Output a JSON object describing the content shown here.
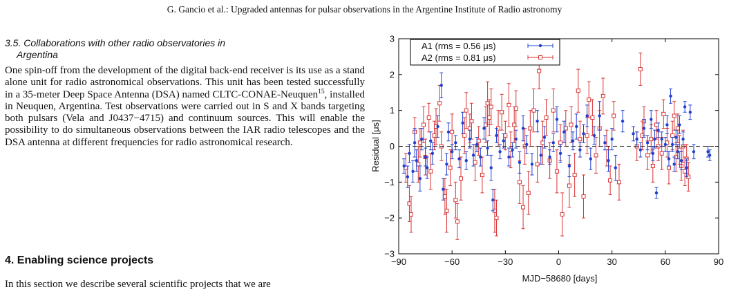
{
  "header": {
    "running_title": "G. Gancio et al.: Upgraded antennas for pulsar observations in the Argentine Institute of Radio astronomy"
  },
  "subsection": {
    "number": "3.5.",
    "title_line1": "Collaborations with other radio observatories in",
    "title_line2": "Argentina"
  },
  "paragraph1": {
    "text_before_sup": "One spin-off from the development of the digital back-end receiver is its use as a stand alone unit for radio astronomical observations. This unit has been tested successfully in a 35-meter Deep Space Antenna (DSA) named CLTC-CONAE-Neuquen",
    "footnote": "15",
    "text_after_sup": ", installed in Neuquen, Argentina. Test observations were carried out in S and X bands targeting both pulsars (Vela and J0437−4715) and continuum sources. This will enable the possibility to do simultaneous observations between the IAR radio telescopes and the DSA antenna at different frequencies for radio astronomical research."
  },
  "section4": {
    "title": "4. Enabling science projects",
    "text": "In this section we describe several scientific projects that we are"
  },
  "colors": {
    "a1": "#1f3fd0",
    "a2": "#d93030"
  },
  "chart_data": {
    "type": "scatter",
    "xlabel": "MJD−58680 [days]",
    "ylabel": "Residual [μs]",
    "xlim": [
      -90,
      90
    ],
    "ylim": [
      -3,
      3
    ],
    "xticks": [
      "−90",
      "−60",
      "−30",
      "0",
      "30",
      "60",
      "90"
    ],
    "yticks": [
      "−3",
      "−2",
      "−1",
      "0",
      "1",
      "2",
      "3"
    ],
    "legend_position": "top-left",
    "zero_line": "dashed",
    "series": [
      {
        "name": "A1 (rms = 0.56 μs)",
        "marker": "dot",
        "points": [
          [
            -87,
            -0.55,
            0.2
          ],
          [
            -85,
            -0.85,
            0.3
          ],
          [
            -84,
            -0.2,
            0.25
          ],
          [
            -82,
            -0.7,
            0.3
          ],
          [
            -81,
            0.1,
            0.4
          ],
          [
            -80,
            -0.4,
            0.3
          ],
          [
            -78,
            -0.9,
            0.35
          ],
          [
            -77,
            0.2,
            0.3
          ],
          [
            -75,
            -0.3,
            0.25
          ],
          [
            -74,
            -0.6,
            0.3
          ],
          [
            -72,
            0.15,
            0.25
          ],
          [
            -71,
            -0.2,
            0.3
          ],
          [
            -68,
            0.55,
            0.3
          ],
          [
            -66,
            1.7,
            0.35
          ],
          [
            -65,
            -1.2,
            0.3
          ],
          [
            -63,
            -0.5,
            0.3
          ],
          [
            -62,
            0.4,
            0.25
          ],
          [
            -60,
            -0.15,
            0.2
          ],
          [
            -58,
            0.1,
            0.2
          ],
          [
            -56,
            -0.35,
            0.25
          ],
          [
            -54,
            0.65,
            0.3
          ],
          [
            -52,
            -0.4,
            0.25
          ],
          [
            -50,
            0.2,
            0.25
          ],
          [
            -48,
            -0.25,
            0.3
          ],
          [
            -46,
            0.05,
            0.2
          ],
          [
            -44,
            -0.3,
            0.25
          ],
          [
            -42,
            0.5,
            0.3
          ],
          [
            -40,
            -0.05,
            0.2
          ],
          [
            -38,
            -0.6,
            0.35
          ],
          [
            -37,
            -1.5,
            0.3
          ],
          [
            -35,
            0.3,
            0.2
          ],
          [
            -33,
            -0.15,
            0.2
          ],
          [
            -31,
            0.15,
            0.2
          ],
          [
            -28,
            -0.3,
            0.25
          ],
          [
            -26,
            -0.1,
            0.2
          ],
          [
            -24,
            0.2,
            0.25
          ],
          [
            -22,
            -0.45,
            0.3
          ],
          [
            -20,
            0.5,
            0.35
          ],
          [
            -18,
            0.05,
            0.25
          ],
          [
            -15,
            -0.5,
            0.3
          ],
          [
            -12,
            0.7,
            0.3
          ],
          [
            -10,
            -0.25,
            0.25
          ],
          [
            -8,
            0.25,
            0.3
          ],
          [
            -5,
            -0.3,
            0.2
          ],
          [
            -3,
            0.1,
            0.25
          ],
          [
            -1,
            0.75,
            0.35
          ],
          [
            1,
            -0.2,
            0.25
          ],
          [
            3,
            0.4,
            0.3
          ],
          [
            6,
            -0.55,
            0.3
          ],
          [
            8,
            0.15,
            0.25
          ],
          [
            10,
            0.55,
            0.35
          ],
          [
            12,
            -0.1,
            0.2
          ],
          [
            14,
            0.35,
            0.25
          ],
          [
            16,
            0.85,
            0.3
          ],
          [
            18,
            -0.35,
            0.3
          ],
          [
            20,
            0.3,
            0.25
          ],
          [
            23,
            0.85,
            0.4
          ],
          [
            26,
            0.1,
            0.2
          ],
          [
            28,
            -0.4,
            0.3
          ],
          [
            30,
            0.2,
            0.3
          ],
          [
            32,
            -0.6,
            0.35
          ],
          [
            36,
            0.7,
            0.3
          ],
          [
            42,
            0.35,
            0.2
          ],
          [
            44,
            0.2,
            0.2
          ],
          [
            46,
            -0.1,
            0.2
          ],
          [
            48,
            0.5,
            0.25
          ],
          [
            50,
            0.1,
            0.2
          ],
          [
            52,
            0.75,
            0.25
          ],
          [
            53,
            -0.2,
            0.2
          ],
          [
            54,
            0.2,
            0.25
          ],
          [
            55,
            -1.3,
            0.15
          ],
          [
            56,
            0.45,
            0.2
          ],
          [
            58,
            0.2,
            0.2
          ],
          [
            60,
            0.05,
            0.2
          ],
          [
            61,
            0.6,
            0.25
          ],
          [
            62,
            -0.35,
            0.2
          ],
          [
            63,
            1.4,
            0.2
          ],
          [
            64,
            0.05,
            0.2
          ],
          [
            65,
            -0.5,
            0.2
          ],
          [
            66,
            0.25,
            0.2
          ],
          [
            67,
            -0.15,
            0.2
          ],
          [
            68,
            0.6,
            0.25
          ],
          [
            69,
            -0.4,
            0.25
          ],
          [
            70,
            0.2,
            0.2
          ],
          [
            71,
            1.1,
            0.15
          ],
          [
            72,
            -0.6,
            0.25
          ],
          [
            74,
            0.95,
            0.2
          ],
          [
            76,
            -0.15,
            0.2
          ],
          [
            84,
            -0.15,
            0.15
          ],
          [
            85,
            -0.25,
            0.15
          ]
        ]
      },
      {
        "name": "A2 (rms = 0.81 μs)",
        "marker": "open-square",
        "points": [
          [
            -86,
            -0.6,
            0.4
          ],
          [
            -84,
            -1.6,
            0.5
          ],
          [
            -83,
            -1.9,
            0.5
          ],
          [
            -81,
            0.4,
            0.4
          ],
          [
            -79,
            -0.5,
            0.5
          ],
          [
            -78,
            0.1,
            0.4
          ],
          [
            -76,
            0.6,
            0.5
          ],
          [
            -75,
            -0.3,
            0.5
          ],
          [
            -73,
            0.8,
            0.4
          ],
          [
            -72,
            -0.7,
            0.5
          ],
          [
            -70,
            0.3,
            0.4
          ],
          [
            -69,
            0.55,
            0.5
          ],
          [
            -67,
            1.2,
            0.5
          ],
          [
            -66,
            0.0,
            0.4
          ],
          [
            -64,
            -1.4,
            0.5
          ],
          [
            -63,
            -1.8,
            0.6
          ],
          [
            -61,
            -0.6,
            0.5
          ],
          [
            -60,
            0.4,
            0.5
          ],
          [
            -58,
            -1.5,
            0.5
          ],
          [
            -57,
            -2.1,
            0.5
          ],
          [
            -55,
            -0.9,
            0.6
          ],
          [
            -53,
            0.3,
            0.5
          ],
          [
            -52,
            1.0,
            0.5
          ],
          [
            -50,
            0.5,
            0.4
          ],
          [
            -49,
            0.7,
            0.5
          ],
          [
            -47,
            -0.45,
            0.5
          ],
          [
            -45,
            0.15,
            0.4
          ],
          [
            -43,
            -0.8,
            0.5
          ],
          [
            -41,
            0.6,
            0.5
          ],
          [
            -40,
            1.2,
            0.6
          ],
          [
            -39,
            0.8,
            0.5
          ],
          [
            -38,
            1.1,
            0.5
          ],
          [
            -36,
            -1.8,
            0.6
          ],
          [
            -35,
            -2.0,
            0.5
          ],
          [
            -34,
            0.5,
            0.5
          ],
          [
            -32,
            0.95,
            0.5
          ],
          [
            -30,
            0.3,
            0.4
          ],
          [
            -28,
            1.15,
            0.6
          ],
          [
            -27,
            -0.1,
            0.5
          ],
          [
            -25,
            0.6,
            0.5
          ],
          [
            -24,
            1.05,
            0.5
          ],
          [
            -22,
            -1.0,
            0.6
          ],
          [
            -20,
            -1.7,
            0.6
          ],
          [
            -19,
            0.0,
            0.5
          ],
          [
            -17,
            -1.3,
            0.6
          ],
          [
            -16,
            0.5,
            0.5
          ],
          [
            -14,
            1.0,
            0.6
          ],
          [
            -12,
            -0.5,
            0.5
          ],
          [
            -11,
            2.1,
            0.5
          ],
          [
            -9,
            0.1,
            0.6
          ],
          [
            -7,
            0.8,
            0.5
          ],
          [
            -5,
            -0.4,
            0.5
          ],
          [
            -3,
            1.0,
            0.6
          ],
          [
            -1,
            -0.7,
            0.6
          ],
          [
            1,
            0.1,
            0.5
          ],
          [
            2,
            -1.9,
            0.6
          ],
          [
            4,
            0.5,
            0.5
          ],
          [
            6,
            -1.1,
            0.6
          ],
          [
            7,
            0.6,
            0.5
          ],
          [
            9,
            -0.8,
            0.6
          ],
          [
            11,
            1.55,
            0.6
          ],
          [
            12,
            0.2,
            0.5
          ],
          [
            14,
            -1.4,
            0.6
          ],
          [
            16,
            0.3,
            0.5
          ],
          [
            17,
            1.3,
            0.5
          ],
          [
            19,
            0.8,
            0.5
          ],
          [
            21,
            -0.25,
            0.5
          ],
          [
            23,
            0.5,
            0.5
          ],
          [
            25,
            1.4,
            0.5
          ],
          [
            27,
            -0.05,
            0.5
          ],
          [
            29,
            -0.95,
            0.4
          ],
          [
            31,
            0.85,
            0.4
          ],
          [
            34,
            -1.0,
            0.5
          ],
          [
            44,
            0.0,
            0.4
          ],
          [
            46,
            2.15,
            0.45
          ],
          [
            47,
            0.3,
            0.4
          ],
          [
            48,
            0.7,
            0.4
          ],
          [
            50,
            -0.25,
            0.4
          ],
          [
            52,
            0.2,
            0.4
          ],
          [
            53,
            -0.55,
            0.45
          ],
          [
            55,
            0.6,
            0.4
          ],
          [
            56,
            0.0,
            0.4
          ],
          [
            58,
            -0.2,
            0.45
          ],
          [
            59,
            0.9,
            0.4
          ],
          [
            61,
            0.1,
            0.4
          ],
          [
            62,
            -0.6,
            0.45
          ],
          [
            64,
            0.3,
            0.4
          ],
          [
            65,
            0.85,
            0.4
          ],
          [
            66,
            -0.3,
            0.4
          ],
          [
            67,
            0.5,
            0.4
          ],
          [
            68,
            -0.1,
            0.4
          ],
          [
            69,
            -0.55,
            0.4
          ],
          [
            70,
            0.0,
            0.45
          ],
          [
            71,
            -0.7,
            0.4
          ],
          [
            72,
            -0.35,
            0.4
          ],
          [
            73,
            -0.85,
            0.4
          ]
        ]
      }
    ]
  }
}
